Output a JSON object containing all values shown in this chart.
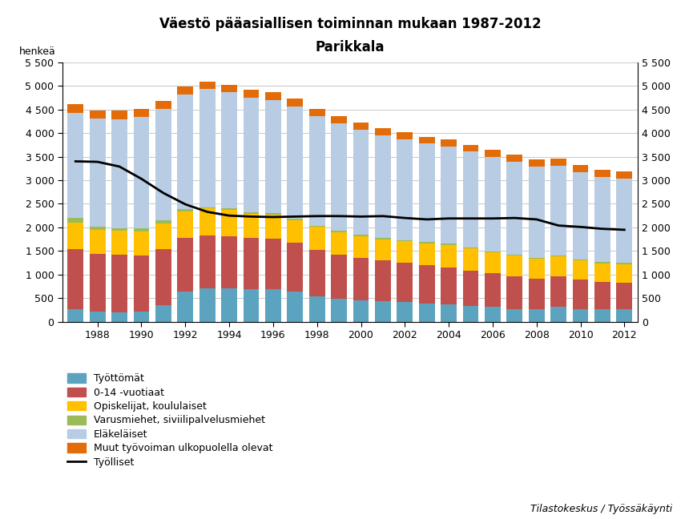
{
  "title1": "Väestö pääasiallisen toiminnan mukaan 1987-2012",
  "title2": "Parikkala",
  "ylabel_left": "henkeä",
  "years": [
    1987,
    1988,
    1989,
    1990,
    1991,
    1992,
    1993,
    1994,
    1995,
    1996,
    1997,
    1998,
    1999,
    2000,
    2001,
    2002,
    2003,
    2004,
    2005,
    2006,
    2007,
    2008,
    2009,
    2010,
    2011,
    2012
  ],
  "tyottomaat": [
    270,
    210,
    200,
    210,
    360,
    640,
    710,
    710,
    700,
    700,
    640,
    540,
    480,
    450,
    430,
    420,
    390,
    370,
    340,
    310,
    270,
    260,
    320,
    270,
    260,
    260
  ],
  "ika_0_14": [
    1270,
    1230,
    1220,
    1200,
    1180,
    1140,
    1120,
    1100,
    1080,
    1060,
    1030,
    990,
    950,
    910,
    870,
    840,
    810,
    780,
    750,
    720,
    690,
    660,
    640,
    620,
    590,
    570
  ],
  "opiskelijat": [
    560,
    510,
    510,
    510,
    550,
    560,
    570,
    560,
    510,
    510,
    490,
    480,
    470,
    460,
    450,
    450,
    460,
    480,
    460,
    440,
    440,
    410,
    420,
    410,
    390,
    390
  ],
  "varusmiehet": [
    100,
    60,
    55,
    55,
    55,
    45,
    30,
    30,
    30,
    30,
    30,
    25,
    25,
    25,
    25,
    25,
    25,
    25,
    25,
    25,
    25,
    25,
    25,
    25,
    25,
    25
  ],
  "elakelaaiset": [
    2220,
    2290,
    2310,
    2360,
    2370,
    2430,
    2500,
    2460,
    2430,
    2400,
    2380,
    2320,
    2280,
    2220,
    2180,
    2130,
    2090,
    2060,
    2030,
    2000,
    1970,
    1940,
    1900,
    1850,
    1810,
    1790
  ],
  "muut": [
    200,
    175,
    185,
    180,
    165,
    175,
    165,
    165,
    170,
    165,
    160,
    155,
    155,
    155,
    155,
    155,
    145,
    145,
    145,
    145,
    155,
    155,
    155,
    145,
    145,
    155
  ],
  "tyolliset": [
    3400,
    3390,
    3290,
    3030,
    2730,
    2490,
    2330,
    2250,
    2230,
    2220,
    2230,
    2240,
    2240,
    2230,
    2240,
    2200,
    2170,
    2190,
    2190,
    2190,
    2200,
    2170,
    2040,
    2010,
    1970,
    1950
  ],
  "colors": {
    "tyottomaat": "#5ba3be",
    "ika_0_14": "#c0504d",
    "opiskelijat": "#ffc000",
    "varusmiehet": "#9bbb59",
    "elakelaaiset": "#b8cce4",
    "muut": "#e36c09"
  },
  "legend_labels": [
    "Työttömät",
    "0-14 -vuotiaat",
    "Opiskelijat, koululaiset",
    "Varusmiehet, siviilipalvelusmiehet",
    "Eläkeläiset",
    "Muut työvoiman ulkopuolella olevat",
    "Työlliset"
  ],
  "ylim": [
    0,
    5500
  ],
  "yticks": [
    0,
    500,
    1000,
    1500,
    2000,
    2500,
    3000,
    3500,
    4000,
    4500,
    5000,
    5500
  ],
  "ytick_labels": [
    "0",
    "500",
    "1 000",
    "1 500",
    "2 000",
    "2 500",
    "3 000",
    "3 500",
    "4 000",
    "4 500",
    "5 000",
    "5 500"
  ],
  "footer": "Tilastokeskus / Työssäkäynti",
  "background_color": "#ffffff",
  "grid_color": "#c8c8c8"
}
